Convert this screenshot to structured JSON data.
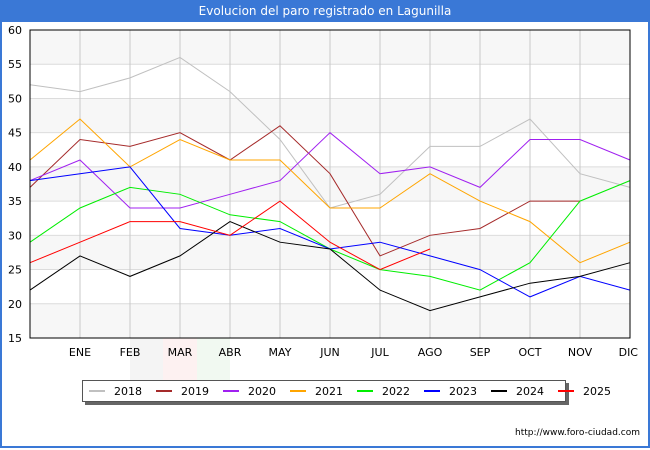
{
  "header": {
    "title": "Evolucion del paro registrado en Lagunilla"
  },
  "footer": {
    "url": "http://www.foro-ciudad.com"
  },
  "chart_data": {
    "type": "line",
    "title": "Evolucion del paro registrado en Lagunilla",
    "xlabel": "",
    "ylabel": "",
    "categories": [
      "",
      "ENE",
      "FEB",
      "MAR",
      "ABR",
      "MAY",
      "JUN",
      "JUL",
      "AGO",
      "SEP",
      "OCT",
      "NOV",
      "DIC"
    ],
    "ylim": [
      15,
      60
    ],
    "yticks": [
      15,
      20,
      25,
      30,
      35,
      40,
      45,
      50,
      55,
      60
    ],
    "grid": true,
    "legend_position": "bottom",
    "series": [
      {
        "name": "2018",
        "color": "#c0c0c0",
        "values": [
          52,
          51,
          53,
          56,
          51,
          44,
          34,
          36,
          43,
          43,
          47,
          39,
          37
        ]
      },
      {
        "name": "2019",
        "color": "#a52a2a",
        "values": [
          37,
          44,
          43,
          45,
          41,
          46,
          39,
          27,
          30,
          31,
          35,
          35,
          null
        ]
      },
      {
        "name": "2020",
        "color": "#a020f0",
        "values": [
          38,
          41,
          34,
          34,
          36,
          38,
          45,
          39,
          40,
          37,
          44,
          44,
          41
        ]
      },
      {
        "name": "2021",
        "color": "#ffa500",
        "values": [
          41,
          47,
          40,
          44,
          41,
          41,
          34,
          34,
          39,
          35,
          32,
          26,
          29
        ]
      },
      {
        "name": "2022",
        "color": "#00ee00",
        "values": [
          29,
          34,
          37,
          36,
          33,
          32,
          28,
          25,
          24,
          22,
          26,
          35,
          38
        ]
      },
      {
        "name": "2023",
        "color": "#0000ff",
        "values": [
          38,
          39,
          40,
          31,
          30,
          31,
          28,
          29,
          27,
          25,
          21,
          24,
          22
        ]
      },
      {
        "name": "2024",
        "color": "#000000",
        "values": [
          22,
          27,
          24,
          27,
          32,
          29,
          28,
          22,
          19,
          21,
          23,
          24,
          26
        ]
      },
      {
        "name": "2025",
        "color": "#ff0000",
        "values": [
          26,
          29,
          32,
          32,
          30,
          35,
          29,
          25,
          28,
          null,
          null,
          null,
          null
        ]
      }
    ]
  }
}
